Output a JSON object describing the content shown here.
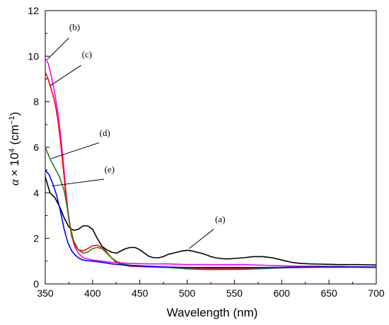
{
  "chart_data": {
    "type": "line",
    "xlabel": "Wavelength (nm)",
    "ylabel_parts": {
      "alpha": "α",
      "times": "× 10",
      "exp1": "4",
      "unit_open": "(cm",
      "exp2": "−1",
      "unit_close": ")"
    },
    "xlim": [
      350,
      700
    ],
    "ylim": [
      0,
      12
    ],
    "x_ticks": [
      350,
      400,
      450,
      500,
      550,
      600,
      650,
      700
    ],
    "y_ticks": [
      0,
      2,
      4,
      6,
      8,
      10,
      12
    ],
    "grid": false,
    "legend": "none",
    "series": [
      {
        "label": "(a)",
        "color": "#000000",
        "points": [
          [
            350,
            4.7
          ],
          [
            355,
            4.0
          ],
          [
            360,
            3.8
          ],
          [
            365,
            3.4
          ],
          [
            370,
            2.9
          ],
          [
            375,
            2.5
          ],
          [
            380,
            2.35
          ],
          [
            385,
            2.4
          ],
          [
            390,
            2.55
          ],
          [
            395,
            2.55
          ],
          [
            400,
            2.4
          ],
          [
            405,
            2.0
          ],
          [
            410,
            1.65
          ],
          [
            415,
            1.5
          ],
          [
            420,
            1.4
          ],
          [
            425,
            1.35
          ],
          [
            430,
            1.45
          ],
          [
            435,
            1.55
          ],
          [
            440,
            1.6
          ],
          [
            445,
            1.6
          ],
          [
            450,
            1.5
          ],
          [
            455,
            1.35
          ],
          [
            460,
            1.2
          ],
          [
            465,
            1.15
          ],
          [
            470,
            1.15
          ],
          [
            475,
            1.2
          ],
          [
            480,
            1.3
          ],
          [
            485,
            1.35
          ],
          [
            490,
            1.4
          ],
          [
            495,
            1.45
          ],
          [
            500,
            1.48
          ],
          [
            505,
            1.45
          ],
          [
            510,
            1.4
          ],
          [
            515,
            1.35
          ],
          [
            520,
            1.28
          ],
          [
            525,
            1.2
          ],
          [
            530,
            1.15
          ],
          [
            535,
            1.12
          ],
          [
            540,
            1.1
          ],
          [
            545,
            1.1
          ],
          [
            550,
            1.12
          ],
          [
            560,
            1.15
          ],
          [
            570,
            1.2
          ],
          [
            580,
            1.2
          ],
          [
            590,
            1.15
          ],
          [
            600,
            1.05
          ],
          [
            610,
            0.95
          ],
          [
            620,
            0.9
          ],
          [
            630,
            0.88
          ],
          [
            640,
            0.87
          ],
          [
            650,
            0.86
          ],
          [
            660,
            0.85
          ],
          [
            680,
            0.85
          ],
          [
            700,
            0.83
          ]
        ]
      },
      {
        "label": "(b)",
        "color": "#ff00ff",
        "points": [
          [
            350,
            9.9
          ],
          [
            353,
            9.7
          ],
          [
            356,
            9.2
          ],
          [
            360,
            8.4
          ],
          [
            363,
            7.6
          ],
          [
            366,
            6.6
          ],
          [
            369,
            5.4
          ],
          [
            372,
            4.0
          ],
          [
            375,
            2.9
          ],
          [
            378,
            2.1
          ],
          [
            381,
            1.65
          ],
          [
            385,
            1.35
          ],
          [
            390,
            1.15
          ],
          [
            395,
            1.1
          ],
          [
            400,
            1.05
          ],
          [
            410,
            1.0
          ],
          [
            420,
            0.95
          ],
          [
            440,
            0.9
          ],
          [
            460,
            0.88
          ],
          [
            480,
            0.88
          ],
          [
            500,
            0.85
          ],
          [
            520,
            0.85
          ],
          [
            540,
            0.85
          ],
          [
            560,
            0.85
          ],
          [
            580,
            0.82
          ],
          [
            600,
            0.8
          ],
          [
            620,
            0.78
          ],
          [
            640,
            0.78
          ],
          [
            660,
            0.76
          ],
          [
            680,
            0.75
          ],
          [
            700,
            0.73
          ]
        ]
      },
      {
        "label": "(c)",
        "color": "#ff0000",
        "points": [
          [
            350,
            9.3
          ],
          [
            353,
            9.0
          ],
          [
            356,
            8.6
          ],
          [
            360,
            8.0
          ],
          [
            363,
            7.3
          ],
          [
            366,
            6.3
          ],
          [
            369,
            5.1
          ],
          [
            372,
            3.8
          ],
          [
            375,
            2.8
          ],
          [
            378,
            2.1
          ],
          [
            381,
            1.7
          ],
          [
            385,
            1.5
          ],
          [
            390,
            1.45
          ],
          [
            395,
            1.55
          ],
          [
            400,
            1.68
          ],
          [
            405,
            1.7
          ],
          [
            410,
            1.6
          ],
          [
            415,
            1.4
          ],
          [
            420,
            1.15
          ],
          [
            425,
            0.95
          ],
          [
            430,
            0.85
          ],
          [
            440,
            0.78
          ],
          [
            460,
            0.75
          ],
          [
            480,
            0.72
          ],
          [
            500,
            0.7
          ],
          [
            520,
            0.68
          ],
          [
            540,
            0.67
          ],
          [
            560,
            0.68
          ],
          [
            580,
            0.7
          ],
          [
            600,
            0.72
          ],
          [
            620,
            0.75
          ],
          [
            640,
            0.76
          ],
          [
            660,
            0.76
          ],
          [
            680,
            0.75
          ],
          [
            700,
            0.73
          ]
        ]
      },
      {
        "label": "(d)",
        "color": "#2e7d1e",
        "points": [
          [
            350,
            6.0
          ],
          [
            355,
            5.5
          ],
          [
            360,
            5.1
          ],
          [
            365,
            4.7
          ],
          [
            370,
            4.1
          ],
          [
            373,
            3.4
          ],
          [
            376,
            2.6
          ],
          [
            380,
            1.9
          ],
          [
            385,
            1.5
          ],
          [
            390,
            1.35
          ],
          [
            395,
            1.4
          ],
          [
            400,
            1.55
          ],
          [
            405,
            1.6
          ],
          [
            410,
            1.55
          ],
          [
            415,
            1.35
          ],
          [
            420,
            1.15
          ],
          [
            425,
            1.0
          ],
          [
            430,
            0.9
          ],
          [
            440,
            0.82
          ],
          [
            460,
            0.78
          ],
          [
            480,
            0.72
          ],
          [
            500,
            0.66
          ],
          [
            520,
            0.63
          ],
          [
            540,
            0.63
          ],
          [
            560,
            0.64
          ],
          [
            580,
            0.67
          ],
          [
            600,
            0.7
          ],
          [
            620,
            0.72
          ],
          [
            640,
            0.73
          ],
          [
            660,
            0.73
          ],
          [
            680,
            0.73
          ],
          [
            700,
            0.72
          ]
        ]
      },
      {
        "label": "(e)",
        "color": "#0000ff",
        "points": [
          [
            350,
            5.0
          ],
          [
            354,
            4.8
          ],
          [
            358,
            4.4
          ],
          [
            362,
            3.9
          ],
          [
            366,
            3.2
          ],
          [
            370,
            2.4
          ],
          [
            374,
            1.8
          ],
          [
            378,
            1.45
          ],
          [
            382,
            1.25
          ],
          [
            386,
            1.12
          ],
          [
            390,
            1.05
          ],
          [
            395,
            1.02
          ],
          [
            400,
            1.0
          ],
          [
            410,
            0.95
          ],
          [
            420,
            0.88
          ],
          [
            430,
            0.84
          ],
          [
            440,
            0.8
          ],
          [
            460,
            0.77
          ],
          [
            480,
            0.74
          ],
          [
            500,
            0.72
          ],
          [
            520,
            0.72
          ],
          [
            540,
            0.72
          ],
          [
            560,
            0.72
          ],
          [
            580,
            0.72
          ],
          [
            600,
            0.73
          ],
          [
            620,
            0.74
          ],
          [
            640,
            0.75
          ],
          [
            660,
            0.75
          ],
          [
            680,
            0.75
          ],
          [
            700,
            0.74
          ]
        ]
      }
    ],
    "annotations": [
      {
        "text": "(a)",
        "text_at": [
          535,
          2.7
        ],
        "leader_from": [
          528,
          2.4
        ],
        "leader_to": [
          502,
          1.55
        ]
      },
      {
        "text": "(b)",
        "text_at": [
          381,
          11.15
        ],
        "leader_from": [
          375,
          10.8
        ],
        "leader_to": [
          352,
          9.85
        ]
      },
      {
        "text": "(c)",
        "text_at": [
          394,
          9.95
        ],
        "leader_from": [
          388,
          9.6
        ],
        "leader_to": [
          355,
          8.7
        ]
      },
      {
        "text": "(d)",
        "text_at": [
          413,
          6.5
        ],
        "leader_from": [
          407,
          6.2
        ],
        "leader_to": [
          356,
          5.5
        ]
      },
      {
        "text": "(e)",
        "text_at": [
          418,
          4.9
        ],
        "leader_from": [
          412,
          4.6
        ],
        "leader_to": [
          357,
          4.3
        ]
      }
    ]
  }
}
